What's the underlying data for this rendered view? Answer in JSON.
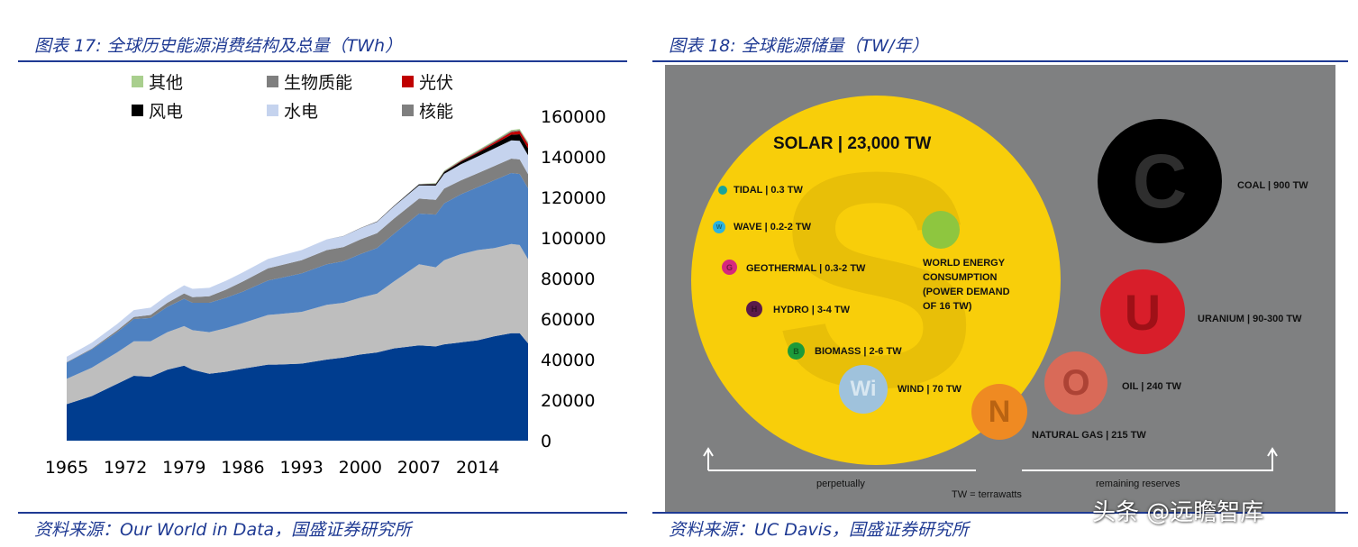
{
  "left": {
    "title": "图表 17:  全球历史能源消费结构及总量（TWh）",
    "source": "资料来源：Our World in Data，国盛证券研究所",
    "legend": [
      {
        "label": "其他",
        "color": "#a9cf8e"
      },
      {
        "label": "生物质能",
        "color": "#7f7f7f"
      },
      {
        "label": "光伏",
        "color": "#c00000"
      },
      {
        "label": "风电",
        "color": "#000000"
      },
      {
        "label": "水电",
        "color": "#c5d3ee"
      },
      {
        "label": "核能",
        "color": "#7f7f7f"
      }
    ],
    "chart_data": {
      "type": "area",
      "x": [
        1965,
        1968,
        1971,
        1973,
        1975,
        1977,
        1979,
        1980,
        1982,
        1984,
        1986,
        1989,
        1990,
        1993,
        1996,
        1998,
        2000,
        2002,
        2004,
        2007,
        2009,
        2010,
        2012,
        2014,
        2016,
        2018,
        2019,
        2020
      ],
      "xticks": [
        1965,
        1972,
        1979,
        1986,
        1993,
        2000,
        2007,
        2014
      ],
      "yticks": [
        0,
        20000,
        40000,
        60000,
        80000,
        100000,
        120000,
        140000,
        160000
      ],
      "ylim": [
        0,
        160000
      ],
      "xlim": [
        1965,
        2020
      ],
      "series": [
        {
          "name": "",
          "color": "#003d8f",
          "values": [
            18000,
            22000,
            28000,
            32000,
            31500,
            35000,
            37000,
            35000,
            33000,
            34000,
            35500,
            37500,
            37500,
            38000,
            40000,
            41000,
            42500,
            43500,
            45500,
            47000,
            46500,
            47500,
            48500,
            49500,
            51500,
            53000,
            53000,
            48000
          ]
        },
        {
          "name": "",
          "color": "#bebebe",
          "values": [
            12500,
            14000,
            15500,
            17000,
            17500,
            18500,
            19500,
            19500,
            20500,
            21500,
            22500,
            24500,
            24800,
            25500,
            27000,
            27000,
            28000,
            29000,
            33000,
            40000,
            39000,
            41500,
            43500,
            44500,
            43500,
            44000,
            43500,
            41500
          ]
        },
        {
          "name": "",
          "color": "#4e81c1",
          "values": [
            8000,
            9000,
            10000,
            11000,
            11500,
            12500,
            13500,
            13500,
            14500,
            15000,
            15500,
            17000,
            17500,
            19000,
            20000,
            20500,
            21500,
            22500,
            23500,
            25000,
            26000,
            28000,
            29500,
            31000,
            33500,
            35000,
            35000,
            35000
          ]
        },
        {
          "name": "核能",
          "color": "#7f7f7f",
          "values": [
            200,
            400,
            800,
            1000,
            1500,
            2000,
            2600,
            2800,
            3200,
            4000,
            5000,
            6000,
            6200,
            6500,
            7000,
            7000,
            7200,
            7300,
            7500,
            7400,
            7300,
            7300,
            6900,
            6900,
            7000,
            7100,
            7200,
            6900
          ]
        },
        {
          "name": "水电",
          "color": "#c5d3ee",
          "values": [
            2700,
            2900,
            3200,
            3400,
            3600,
            3700,
            4000,
            4100,
            4200,
            4400,
            4500,
            4600,
            4700,
            5000,
            5300,
            5400,
            5500,
            5600,
            6000,
            6500,
            7000,
            7300,
            7900,
            8300,
            8700,
            9000,
            9200,
            9400
          ]
        },
        {
          "name": "风电",
          "color": "#000000",
          "values": [
            0,
            0,
            0,
            0,
            0,
            0,
            0,
            0,
            0,
            0,
            0,
            0,
            0,
            0,
            10,
            20,
            80,
            130,
            220,
            450,
            700,
            900,
            1300,
            1700,
            2200,
            2800,
            3200,
            3400
          ]
        },
        {
          "name": "光伏",
          "color": "#c00000",
          "values": [
            0,
            0,
            0,
            0,
            0,
            0,
            0,
            0,
            0,
            0,
            0,
            0,
            0,
            0,
            0,
            0,
            0,
            0,
            0,
            0,
            50,
            80,
            250,
            500,
            850,
            1300,
            1600,
            2000
          ]
        },
        {
          "name": "生物质能",
          "color": "#7f7f7f",
          "values": [
            0,
            0,
            0,
            0,
            0,
            0,
            0,
            0,
            0,
            0,
            0,
            0,
            0,
            0,
            0,
            0,
            100,
            150,
            200,
            250,
            300,
            330,
            380,
            430,
            480,
            530,
            560,
            580
          ]
        },
        {
          "name": "其他",
          "color": "#a9cf8e",
          "values": [
            0,
            0,
            0,
            0,
            0,
            0,
            0,
            0,
            0,
            0,
            0,
            0,
            0,
            0,
            0,
            0,
            0,
            0,
            0,
            0,
            200,
            250,
            300,
            350,
            400,
            450,
            480,
            500
          ]
        }
      ]
    }
  },
  "right": {
    "title": "图表 18:  全球能源储量（TW/年）",
    "source": "资料来源：UC Davis，国盛证券研究所",
    "solar_label": "SOLAR | 23,000 TW",
    "world_energy_label": "WORLD ENERGY\nCONSUMPTION\n(POWER DEMAND\nOF 16 TW)",
    "renewables": [
      {
        "label": "TIDAL | 0.3 TW",
        "letter": "",
        "color": "#1aa39a"
      },
      {
        "label": "WAVE | 0.2-2 TW",
        "letter": "W",
        "color": "#2bb3df"
      },
      {
        "label": "GEOTHERMAL | 0.3-2 TW",
        "letter": "G",
        "color": "#d6287e"
      },
      {
        "label": "HYDRO | 3-4 TW",
        "letter": "H",
        "color": "#5a1a4a"
      },
      {
        "label": "BIOMASS | 2-6 TW",
        "letter": "B",
        "color": "#1c9a3a"
      },
      {
        "label": "WIND | 70 TW",
        "letter": "Wi",
        "color": "#9fc2dc"
      }
    ],
    "reserves": [
      {
        "label": "COAL | 900 TW",
        "letter": "C",
        "color": "#000000"
      },
      {
        "label": "URANIUM | 90-300 TW",
        "letter": "U",
        "color": "#d81e2a"
      },
      {
        "label": "OIL | 240 TW",
        "letter": "O",
        "color": "#d96a58"
      },
      {
        "label": "NATURAL GAS | 215 TW",
        "letter": "N",
        "color": "#ef8a22"
      }
    ],
    "perpetually": "perpetually",
    "remaining_reserves": "remaining reserves",
    "tw_note": "TW = terrawatts",
    "watermark": "头条 @远瞻智库",
    "colors": {
      "solar": "#f8ce0a",
      "background": "#7f8081",
      "world_energy": "#8ec63f"
    }
  }
}
